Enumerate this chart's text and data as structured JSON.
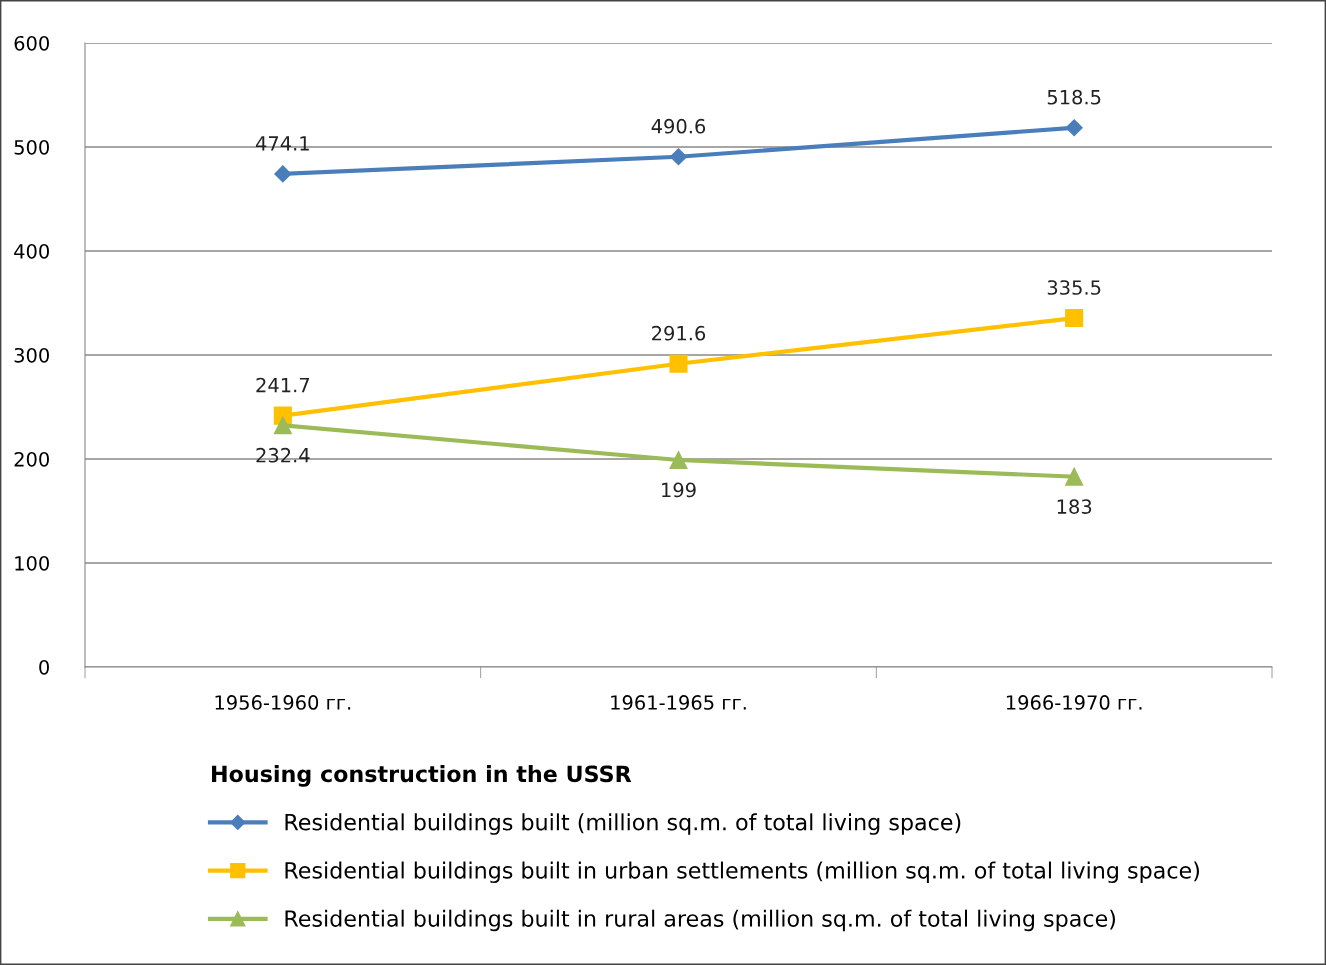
{
  "chart_data": {
    "type": "line",
    "legend_title": "Housing construction in the USSR",
    "categories": [
      "1956-1960 гг.",
      "1961-1965 гг.",
      "1966-1970 гг."
    ],
    "series": [
      {
        "name": "Residential buildings built (million sq.m. of total living space)",
        "color": "#4a7ebb",
        "marker": "diamond",
        "values": [
          474.1,
          490.6,
          518.5
        ]
      },
      {
        "name": "Residential buildings built in urban settlements (million sq.m. of total living space)",
        "color": "#ffc000",
        "marker": "square",
        "values": [
          241.7,
          291.6,
          335.5
        ]
      },
      {
        "name": "Residential buildings built in rural areas (million sq.m. of total living space)",
        "color": "#9bbb59",
        "marker": "triangle",
        "values": [
          232.4,
          199,
          183
        ]
      }
    ],
    "ylim": [
      0,
      600
    ],
    "yticks": [
      0,
      100,
      200,
      300,
      400,
      500,
      600
    ],
    "grid": "y",
    "legend": "bottom",
    "data_labels": true,
    "line_style": "solid"
  }
}
